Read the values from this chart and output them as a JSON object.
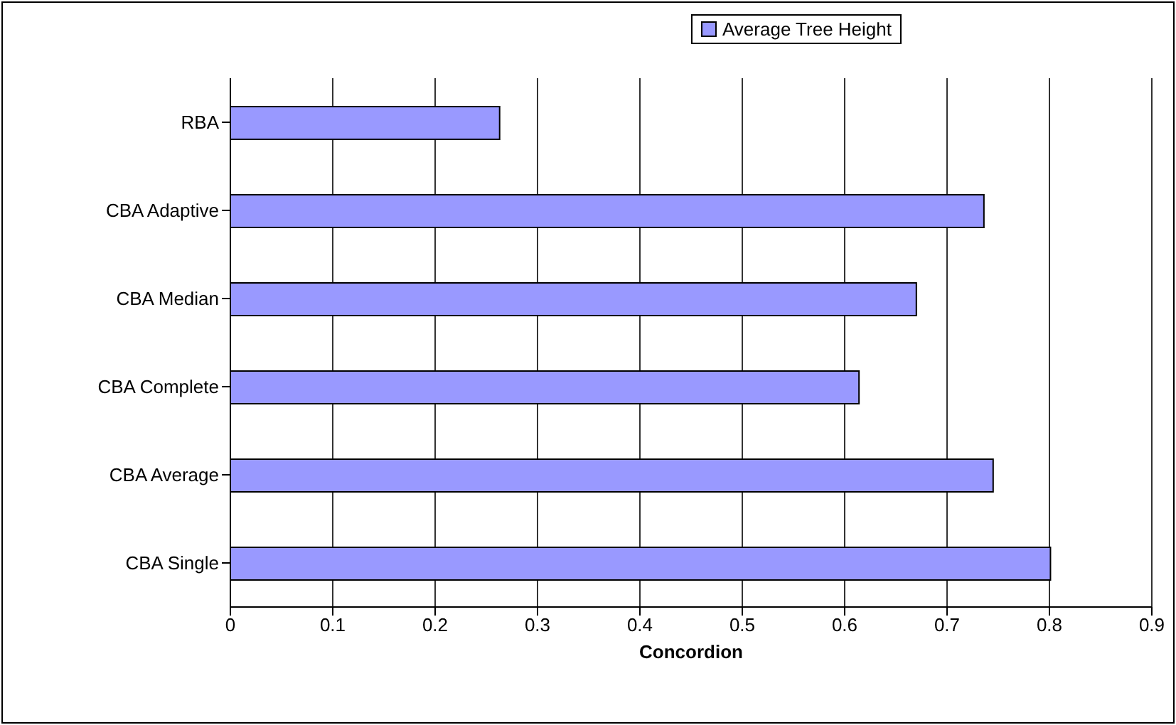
{
  "chart_data": {
    "type": "bar",
    "orientation": "horizontal",
    "xlabel": "Concordion",
    "categories": [
      "RBA",
      "CBA Adaptive",
      "CBA Median",
      "CBA Complete",
      "CBA Average",
      "CBA Single"
    ],
    "series": [
      {
        "name": "Average Tree Height",
        "color": "#9999ff",
        "values": [
          0.263,
          0.736,
          0.67,
          0.614,
          0.745,
          0.801
        ]
      }
    ],
    "xlim": [
      0,
      0.9
    ],
    "xticks": [
      0,
      0.1,
      0.2,
      0.3,
      0.4,
      0.5,
      0.6,
      0.7,
      0.8,
      0.9
    ],
    "grid": "x",
    "legend": "top"
  }
}
